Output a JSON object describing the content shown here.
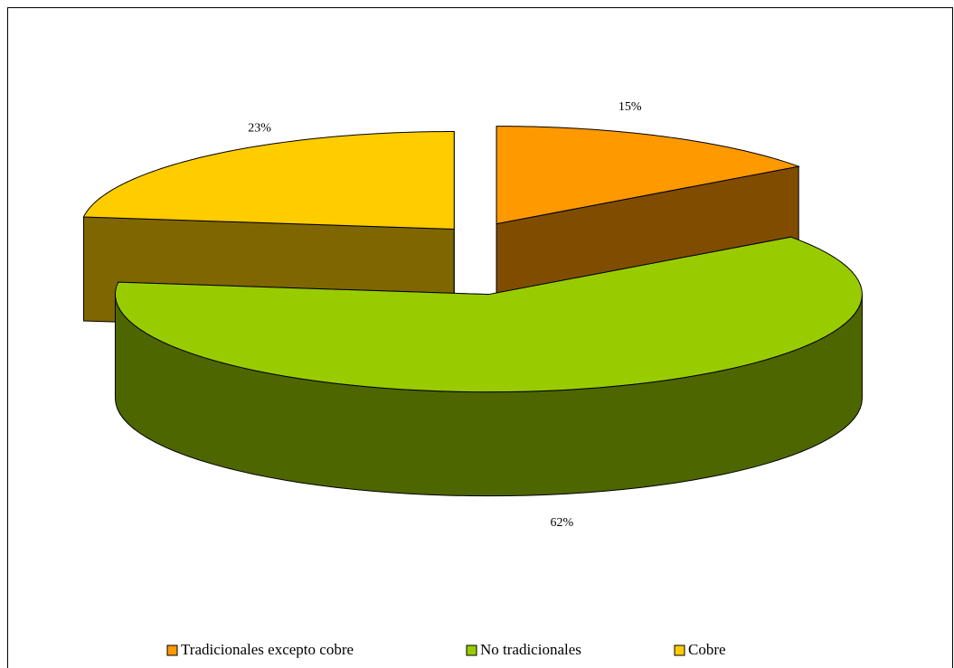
{
  "chart_data": {
    "type": "pie3d",
    "categories": [
      "Tradicionales excepto cobre",
      "No tradicionales",
      "Cobre"
    ],
    "values": [
      15,
      62,
      23
    ],
    "value_labels": [
      "15%",
      "62%",
      "23%"
    ],
    "colors": [
      "#FF9900",
      "#99CC00",
      "#FFCC00"
    ],
    "legend": "bottom"
  }
}
